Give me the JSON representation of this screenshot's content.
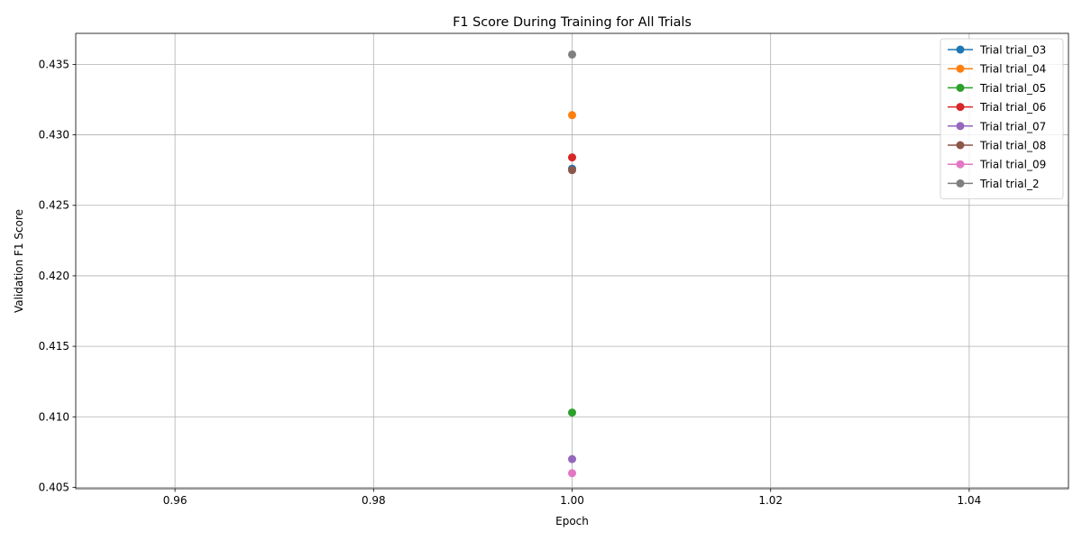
{
  "chart_data": {
    "type": "line",
    "title": "F1 Score During Training for All Trials",
    "xlabel": "Epoch",
    "ylabel": "Validation F1 Score",
    "xlim": [
      0.95,
      1.05
    ],
    "ylim": [
      0.4049,
      0.4372
    ],
    "xticks": [
      "0.96",
      "0.98",
      "1.00",
      "1.02",
      "1.04"
    ],
    "yticks": [
      "0.405",
      "0.410",
      "0.415",
      "0.420",
      "0.425",
      "0.430",
      "0.435"
    ],
    "grid": true,
    "legend_position": "top-right",
    "series": [
      {
        "name": "Trial trial_03",
        "color": "#1f77b4",
        "x": [
          1.0
        ],
        "y": [
          0.4276
        ]
      },
      {
        "name": "Trial trial_04",
        "color": "#ff7f0e",
        "x": [
          1.0
        ],
        "y": [
          0.4314
        ]
      },
      {
        "name": "Trial trial_05",
        "color": "#2ca02c",
        "x": [
          1.0
        ],
        "y": [
          0.4103
        ]
      },
      {
        "name": "Trial trial_06",
        "color": "#d62728",
        "x": [
          1.0
        ],
        "y": [
          0.4284
        ]
      },
      {
        "name": "Trial trial_07",
        "color": "#9467bd",
        "x": [
          1.0
        ],
        "y": [
          0.407
        ]
      },
      {
        "name": "Trial trial_08",
        "color": "#8c564b",
        "x": [
          1.0
        ],
        "y": [
          0.4275
        ]
      },
      {
        "name": "Trial trial_09",
        "color": "#e377c2",
        "x": [
          1.0
        ],
        "y": [
          0.406
        ]
      },
      {
        "name": "Trial trial_2",
        "color": "#7f7f7f",
        "x": [
          1.0
        ],
        "y": [
          0.4357
        ]
      }
    ]
  }
}
